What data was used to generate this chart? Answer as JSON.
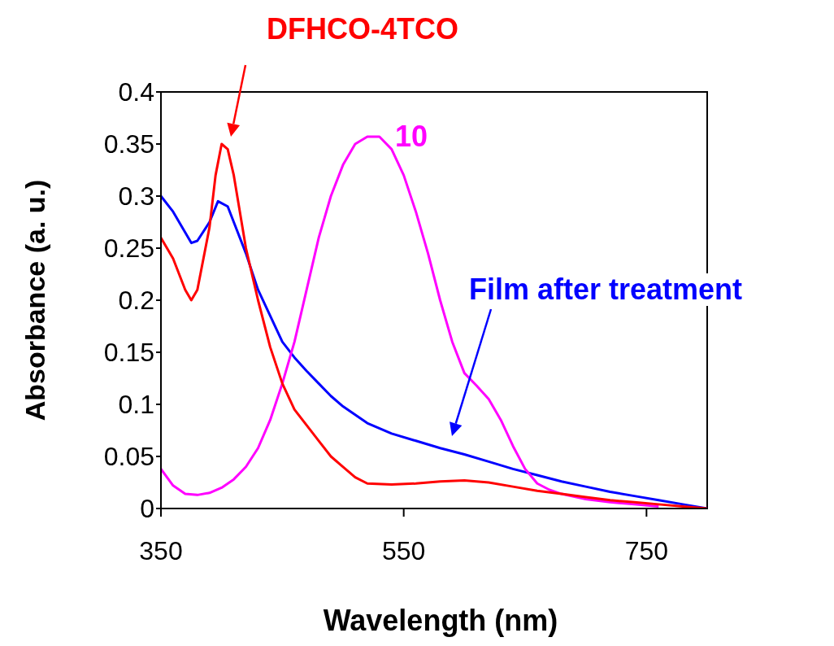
{
  "chart_data": {
    "type": "line",
    "xlabel": "Wavelength (nm)",
    "ylabel": "Absorbance (a. u.)",
    "xlim": [
      350,
      800
    ],
    "xticks": [
      350,
      550,
      750
    ],
    "ylim": [
      0,
      0.4
    ],
    "yticks": [
      0,
      0.05,
      0.1,
      0.15,
      0.2,
      0.25,
      0.3,
      0.35,
      0.4
    ],
    "grid": false,
    "legend": false,
    "marker": "none",
    "line_style": "solid",
    "series": [
      {
        "name": "DFHCO-4TCO",
        "color": "#ff0000",
        "x": [
          350,
          360,
          370,
          375,
          380,
          390,
          395,
          400,
          405,
          410,
          420,
          430,
          440,
          450,
          460,
          470,
          480,
          490,
          500,
          510,
          520,
          540,
          560,
          580,
          600,
          620,
          640,
          660,
          680,
          700,
          720,
          740,
          760,
          780,
          800
        ],
        "values": [
          0.26,
          0.24,
          0.21,
          0.2,
          0.21,
          0.27,
          0.32,
          0.35,
          0.345,
          0.32,
          0.25,
          0.2,
          0.155,
          0.12,
          0.095,
          0.08,
          0.065,
          0.05,
          0.04,
          0.03,
          0.024,
          0.023,
          0.024,
          0.026,
          0.027,
          0.025,
          0.021,
          0.017,
          0.014,
          0.011,
          0.008,
          0.006,
          0.004,
          0.002,
          0
        ]
      },
      {
        "name": "10",
        "color": "#ff00ff",
        "x": [
          350,
          360,
          370,
          380,
          390,
          400,
          410,
          420,
          430,
          440,
          450,
          460,
          470,
          480,
          490,
          500,
          510,
          520,
          530,
          540,
          550,
          560,
          570,
          580,
          590,
          600,
          610,
          620,
          630,
          640,
          650,
          660,
          670,
          680,
          700,
          720,
          740,
          760
        ],
        "values": [
          0.038,
          0.022,
          0.014,
          0.013,
          0.015,
          0.02,
          0.028,
          0.04,
          0.058,
          0.085,
          0.12,
          0.16,
          0.21,
          0.26,
          0.3,
          0.33,
          0.35,
          0.357,
          0.357,
          0.345,
          0.32,
          0.285,
          0.245,
          0.2,
          0.16,
          0.13,
          0.118,
          0.105,
          0.085,
          0.06,
          0.038,
          0.024,
          0.018,
          0.014,
          0.009,
          0.006,
          0.004,
          0.002
        ]
      },
      {
        "name": "Film after treatment",
        "color": "#0000ff",
        "x": [
          350,
          360,
          370,
          375,
          380,
          390,
          397,
          405,
          410,
          420,
          430,
          440,
          450,
          460,
          470,
          480,
          490,
          500,
          510,
          520,
          540,
          560,
          580,
          600,
          620,
          640,
          660,
          680,
          700,
          720,
          740,
          760,
          780,
          800
        ],
        "values": [
          0.3,
          0.285,
          0.265,
          0.255,
          0.257,
          0.275,
          0.295,
          0.29,
          0.275,
          0.245,
          0.21,
          0.185,
          0.16,
          0.145,
          0.132,
          0.12,
          0.108,
          0.098,
          0.09,
          0.082,
          0.072,
          0.065,
          0.058,
          0.052,
          0.045,
          0.038,
          0.032,
          0.026,
          0.021,
          0.016,
          0.012,
          0.008,
          0.004,
          0
        ]
      }
    ]
  }
}
